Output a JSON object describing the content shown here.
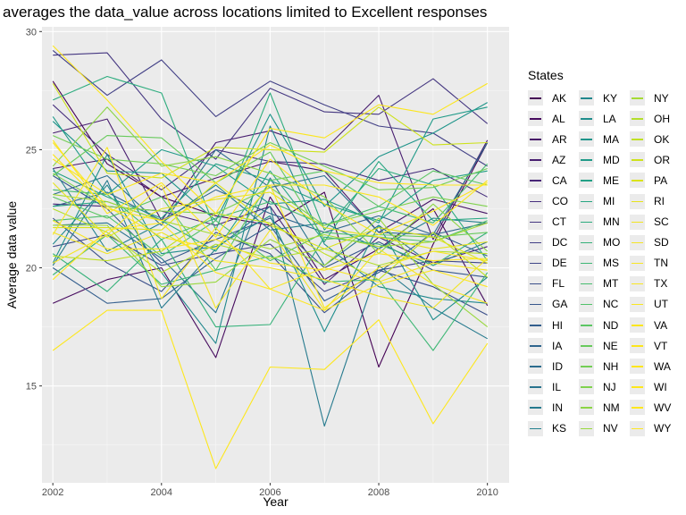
{
  "chart_data": {
    "type": "line",
    "title": "averages the data_value across locations limited to Excellent responses",
    "xlabel": "Year",
    "ylabel": "Average data value",
    "x": [
      2002,
      2003,
      2004,
      2005,
      2006,
      2007,
      2008,
      2009,
      2010
    ],
    "xlim": [
      2001.8,
      2010.4
    ],
    "ylim": [
      10.9,
      30.2
    ],
    "x_ticks": [
      2002,
      2004,
      2006,
      2008,
      2010
    ],
    "y_ticks": [
      15,
      20,
      25,
      30
    ],
    "grid": true,
    "legend_title": "States",
    "legend_position": "right",
    "series": [
      {
        "name": "AK",
        "color": "#440154",
        "values": [
          27.9,
          24.4,
          23.0,
          22.2,
          21.8,
          23.2,
          15.8,
          21.0,
          25.3
        ]
      },
      {
        "name": "AL",
        "color": "#460B5E",
        "values": [
          18.5,
          19.5,
          20.0,
          16.2,
          23.0,
          19.5,
          20.8,
          22.5,
          18.4
        ]
      },
      {
        "name": "AR",
        "color": "#471567",
        "values": [
          24.2,
          24.6,
          23.0,
          23.8,
          24.5,
          24.1,
          21.5,
          22.9,
          22.3
        ]
      },
      {
        "name": "AZ",
        "color": "#481E70",
        "values": [
          25.7,
          26.3,
          22.0,
          25.3,
          25.8,
          25.0,
          27.3,
          21.2,
          25.4
        ]
      },
      {
        "name": "CA",
        "color": "#482677",
        "values": [
          22.7,
          22.6,
          22.4,
          21.8,
          22.6,
          19.3,
          21.3,
          20.2,
          20.9
        ]
      },
      {
        "name": "CO",
        "color": "#472F7D",
        "values": [
          26.9,
          24.8,
          23.3,
          25.0,
          24.5,
          24.4,
          23.7,
          24.2,
          23.0
        ]
      },
      {
        "name": "CT",
        "color": "#453781",
        "values": [
          29.0,
          29.1,
          26.3,
          24.6,
          27.6,
          26.6,
          26.5,
          28.0,
          26.1
        ]
      },
      {
        "name": "DC",
        "color": "#424086",
        "values": [
          29.2,
          27.3,
          28.8,
          26.4,
          27.9,
          26.9,
          26.0,
          25.7,
          24.3
        ]
      },
      {
        "name": "DE",
        "color": "#3F4788",
        "values": [
          20.9,
          21.4,
          20.1,
          20.6,
          21.0,
          19.0,
          19.9,
          20.3,
          20.2
        ]
      },
      {
        "name": "FL",
        "color": "#3B4F8A",
        "values": [
          22.1,
          20.2,
          19.0,
          21.5,
          20.6,
          18.1,
          19.9,
          19.2,
          18.0
        ]
      },
      {
        "name": "GA",
        "color": "#37578C",
        "values": [
          23.9,
          22.5,
          20.2,
          21.2,
          22.1,
          20.0,
          21.1,
          19.9,
          19.6
        ]
      },
      {
        "name": "HI",
        "color": "#335E8D",
        "values": [
          20.0,
          18.5,
          18.7,
          20.4,
          21.8,
          18.6,
          19.8,
          21.5,
          20.5
        ]
      },
      {
        "name": "IA",
        "color": "#2F658D",
        "values": [
          22.6,
          23.2,
          22.0,
          23.3,
          22.3,
          21.5,
          22.2,
          21.4,
          21.9
        ]
      },
      {
        "name": "ID",
        "color": "#2C6C8E",
        "values": [
          23.1,
          23.9,
          21.8,
          25.0,
          23.4,
          23.9,
          21.5,
          21.4,
          25.3
        ]
      },
      {
        "name": "IL",
        "color": "#29738E",
        "values": [
          21.8,
          21.9,
          20.4,
          18.1,
          23.8,
          20.1,
          21.8,
          20.1,
          21.1
        ]
      },
      {
        "name": "IN",
        "color": "#267A8E",
        "values": [
          20.1,
          23.7,
          18.3,
          20.8,
          22.6,
          13.3,
          20.1,
          18.3,
          17.0
        ]
      },
      {
        "name": "KS",
        "color": "#24808E",
        "values": [
          24.2,
          20.7,
          21.9,
          23.5,
          21.6,
          21.9,
          20.8,
          22.1,
          21.9
        ]
      },
      {
        "name": "KY",
        "color": "#21878D",
        "values": [
          21.0,
          23.5,
          19.8,
          16.8,
          26.0,
          21.0,
          19.2,
          18.7,
          18.5
        ]
      },
      {
        "name": "LA",
        "color": "#1F8D8C",
        "values": [
          20.2,
          24.8,
          20.6,
          20.9,
          22.2,
          17.3,
          21.8,
          17.8,
          19.6
        ]
      },
      {
        "name": "MA",
        "color": "#1E948A",
        "values": [
          26.2,
          24.1,
          24.0,
          22.0,
          26.5,
          22.6,
          24.7,
          25.7,
          27.0
        ]
      },
      {
        "name": "MD",
        "color": "#1F9A88",
        "values": [
          26.4,
          23.1,
          25.0,
          24.3,
          22.7,
          22.9,
          21.9,
          26.3,
          26.8
        ]
      },
      {
        "name": "ME",
        "color": "#22A085",
        "values": [
          24.1,
          23.0,
          22.1,
          24.4,
          23.7,
          22.7,
          22.0,
          23.7,
          24.1
        ]
      },
      {
        "name": "MI",
        "color": "#27A682",
        "values": [
          22.6,
          22.8,
          22.0,
          20.7,
          24.1,
          21.1,
          24.5,
          22.0,
          22.1
        ]
      },
      {
        "name": "MN",
        "color": "#2DAC7E",
        "values": [
          27.1,
          28.1,
          27.4,
          21.6,
          27.4,
          21.6,
          24.2,
          23.5,
          20.3
        ]
      },
      {
        "name": "MO",
        "color": "#35B179",
        "values": [
          20.6,
          19.0,
          21.2,
          17.5,
          17.6,
          21.3,
          21.0,
          20.1,
          21.5
        ]
      },
      {
        "name": "MS",
        "color": "#3EB775",
        "values": [
          19.7,
          21.4,
          19.3,
          19.9,
          20.5,
          19.4,
          19.5,
          16.5,
          19.8
        ]
      },
      {
        "name": "MT",
        "color": "#47BC70",
        "values": [
          23.3,
          23.1,
          21.2,
          22.1,
          22.8,
          21.8,
          22.6,
          21.9,
          24.4
        ]
      },
      {
        "name": "NC",
        "color": "#51C16A",
        "values": [
          22.0,
          22.2,
          20.5,
          22.0,
          20.3,
          21.5,
          21.3,
          21.1,
          22.0
        ]
      },
      {
        "name": "ND",
        "color": "#5CC664",
        "values": [
          23.0,
          22.1,
          23.0,
          19.9,
          23.7,
          24.1,
          22.6,
          24.1,
          23.5
        ]
      },
      {
        "name": "NE",
        "color": "#68CA5D",
        "values": [
          23.9,
          25.6,
          25.5,
          23.6,
          24.9,
          21.2,
          21.4,
          21.3,
          21.5
        ]
      },
      {
        "name": "NH",
        "color": "#73CE56",
        "values": [
          25.6,
          24.6,
          24.4,
          23.9,
          25.3,
          24.3,
          23.3,
          23.4,
          24.2
        ]
      },
      {
        "name": "NJ",
        "color": "#80D24E",
        "values": [
          24.0,
          22.6,
          22.4,
          22.3,
          23.4,
          21.8,
          22.4,
          23.0,
          22.6
        ]
      },
      {
        "name": "NM",
        "color": "#8CD546",
        "values": [
          24.3,
          26.8,
          24.3,
          24.7,
          24.0,
          23.0,
          20.6,
          22.7,
          20.7
        ]
      },
      {
        "name": "NV",
        "color": "#99D83E",
        "values": [
          21.8,
          21.8,
          19.2,
          19.4,
          21.2,
          20.1,
          22.1,
          19.3,
          17.5
        ]
      },
      {
        "name": "NY",
        "color": "#A6DB35",
        "values": [
          23.1,
          22.8,
          22.0,
          21.4,
          20.8,
          21.4,
          20.9,
          21.1,
          21.9
        ]
      },
      {
        "name": "OH",
        "color": "#B3DE2C",
        "values": [
          22.5,
          21.5,
          19.8,
          21.0,
          20.4,
          20.8,
          20.1,
          20.7,
          20.6
        ]
      },
      {
        "name": "OK",
        "color": "#C0E023",
        "values": [
          20.5,
          20.3,
          20.7,
          22.3,
          21.9,
          20.6,
          19.5,
          21.5,
          19.6
        ]
      },
      {
        "name": "OR",
        "color": "#CDE21B",
        "values": [
          27.8,
          24.0,
          23.8,
          25.1,
          25.0,
          24.9,
          26.8,
          25.2,
          25.3
        ]
      },
      {
        "name": "PA",
        "color": "#DAE319",
        "values": [
          21.7,
          21.7,
          21.6,
          23.6,
          21.8,
          20.8,
          21.7,
          21.3,
          20.2
        ]
      },
      {
        "name": "RI",
        "color": "#E6E31B",
        "values": [
          23.6,
          21.3,
          22.5,
          22.9,
          23.2,
          21.7,
          21.3,
          20.8,
          21.1
        ]
      },
      {
        "name": "SC",
        "color": "#F1E422",
        "values": [
          21.5,
          20.6,
          21.5,
          20.3,
          20.0,
          19.5,
          18.8,
          18.3,
          20.4
        ]
      },
      {
        "name": "SD",
        "color": "#F4E527",
        "values": [
          20.2,
          21.4,
          23.5,
          18.3,
          21.6,
          18.2,
          20.8,
          19.3,
          18.5
        ]
      },
      {
        "name": "TN",
        "color": "#F7E625",
        "values": [
          21.4,
          25.1,
          18.7,
          21.7,
          19.1,
          20.0,
          19.4,
          20.2,
          19.9
        ]
      },
      {
        "name": "TX",
        "color": "#F9E622",
        "values": [
          22.0,
          20.8,
          20.8,
          21.2,
          20.2,
          19.9,
          20.6,
          20.3,
          20.4
        ]
      },
      {
        "name": "UT",
        "color": "#FAE61F",
        "values": [
          25.3,
          22.6,
          21.3,
          20.8,
          23.5,
          18.3,
          20.0,
          20.7,
          20.3
        ]
      },
      {
        "name": "VA",
        "color": "#FBE61D",
        "values": [
          24.8,
          22.5,
          22.0,
          23.0,
          23.5,
          23.5,
          23.0,
          21.8,
          23.7
        ]
      },
      {
        "name": "VT",
        "color": "#FCE61C",
        "values": [
          29.4,
          27.1,
          24.5,
          22.3,
          25.9,
          25.5,
          26.9,
          26.5,
          27.8
        ]
      },
      {
        "name": "WA",
        "color": "#FDE61C",
        "values": [
          25.4,
          22.3,
          23.6,
          21.3,
          24.6,
          22.7,
          21.4,
          22.4,
          23.6
        ]
      },
      {
        "name": "WI",
        "color": "#FDE71C",
        "values": [
          24.6,
          23.1,
          24.0,
          23.6,
          25.2,
          24.1,
          23.6,
          23.5,
          23.5
        ]
      },
      {
        "name": "WV",
        "color": "#FDE71D",
        "values": [
          16.5,
          18.2,
          18.2,
          11.5,
          15.8,
          15.7,
          17.8,
          13.4,
          16.8
        ]
      },
      {
        "name": "WY",
        "color": "#FDE725",
        "values": [
          19.5,
          21.6,
          21.9,
          19.8,
          19.1,
          18.2,
          19.3,
          19.9,
          19.2
        ]
      }
    ]
  }
}
